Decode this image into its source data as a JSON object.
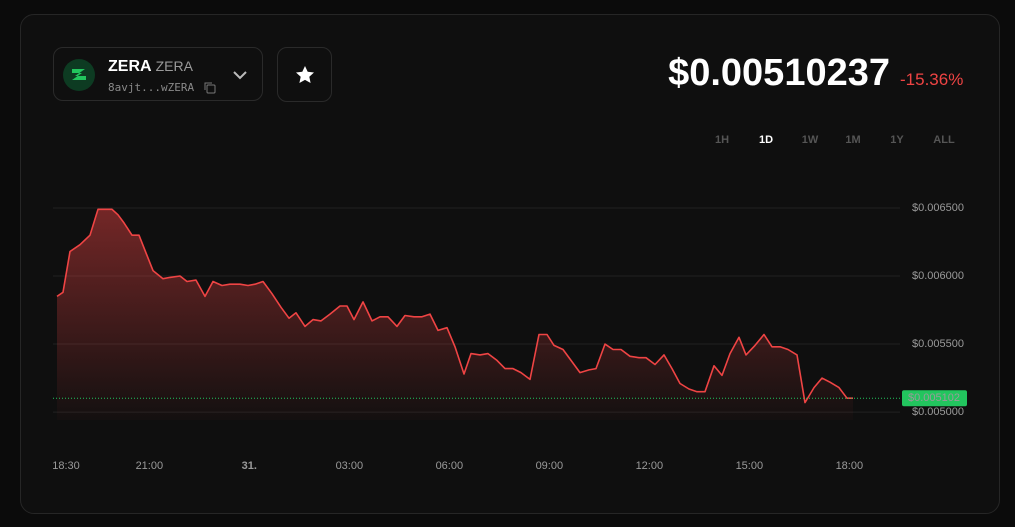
{
  "header": {
    "token_name": "ZERA",
    "token_symbol": "ZERA",
    "address": "8avjt...wZERA",
    "price": "$0.00510237",
    "change": "-15.36%"
  },
  "timeframes": [
    "1H",
    "1D",
    "1W",
    "1M",
    "1Y",
    "ALL"
  ],
  "active_timeframe": 1,
  "chart_data": {
    "type": "area",
    "color": "#ef4444",
    "grid": true,
    "x": [
      18.23,
      18.41,
      18.62,
      18.92,
      19.22,
      19.46,
      19.88,
      20.06,
      20.24,
      20.48,
      20.69,
      20.9,
      21.11,
      21.41,
      21.62,
      21.92,
      22.13,
      22.4,
      22.67,
      22.91,
      23.18,
      23.42,
      23.72,
      23.96,
      24.17,
      24.41,
      24.68,
      24.95,
      25.19,
      25.4,
      25.67,
      25.91,
      26.15,
      26.42,
      26.72,
      26.93,
      27.14,
      27.41,
      27.68,
      27.92,
      28.16,
      28.43,
      28.67,
      28.94,
      29.18,
      29.42,
      29.66,
      29.93,
      30.17,
      30.44,
      30.65,
      30.92,
      31.16,
      31.43,
      31.67,
      31.91,
      32.15,
      32.42,
      32.69,
      32.93,
      33.14,
      33.41,
      33.65,
      33.92,
      34.19,
      34.4,
      34.67,
      34.91,
      35.15,
      35.42,
      35.69,
      35.9,
      36.17,
      36.44,
      36.68,
      36.92,
      37.19,
      37.43,
      37.67,
      37.94,
      38.18,
      38.42,
      38.69,
      38.9,
      39.17,
      39.44,
      39.68,
      39.92,
      40.16,
      40.43,
      40.67,
      40.94,
      41.18,
      41.42,
      41.69,
      41.93,
      42.11
    ],
    "values": [
      0.00585,
      0.00588,
      0.00618,
      0.00623,
      0.0063,
      0.00649,
      0.00649,
      0.00645,
      0.00639,
      0.0063,
      0.0063,
      0.00617,
      0.00604,
      0.00598,
      0.00599,
      0.006,
      0.00596,
      0.00597,
      0.00585,
      0.00596,
      0.00593,
      0.00594,
      0.00594,
      0.00593,
      0.00594,
      0.00596,
      0.00587,
      0.00577,
      0.00569,
      0.00573,
      0.00563,
      0.00568,
      0.00567,
      0.00572,
      0.00578,
      0.00578,
      0.00568,
      0.00581,
      0.00567,
      0.0057,
      0.0057,
      0.00563,
      0.00571,
      0.0057,
      0.0057,
      0.00572,
      0.0056,
      0.00562,
      0.00548,
      0.00528,
      0.00543,
      0.00542,
      0.00543,
      0.00538,
      0.00532,
      0.00532,
      0.00529,
      0.00524,
      0.00557,
      0.00557,
      0.00549,
      0.00546,
      0.00538,
      0.00529,
      0.00531,
      0.00532,
      0.0055,
      0.00546,
      0.00546,
      0.00541,
      0.0054,
      0.0054,
      0.00535,
      0.00542,
      0.00532,
      0.00521,
      0.00517,
      0.00515,
      0.00515,
      0.00534,
      0.00527,
      0.00543,
      0.00555,
      0.00542,
      0.00549,
      0.00557,
      0.00548,
      0.00548,
      0.00546,
      0.00542,
      0.00507,
      0.00518,
      0.00525,
      0.00522,
      0.00518,
      0.005102,
      0.005102
    ],
    "xlim": [
      18.11,
      43.46
    ],
    "xticks": [
      {
        "value": 18.5,
        "label": "18:30"
      },
      {
        "value": 21,
        "label": "21:00"
      },
      {
        "value": 24,
        "label": "31."
      },
      {
        "value": 27,
        "label": "03:00"
      },
      {
        "value": 30,
        "label": "06:00"
      },
      {
        "value": 33,
        "label": "09:00"
      },
      {
        "value": 36,
        "label": "12:00"
      },
      {
        "value": 39,
        "label": "15:00"
      },
      {
        "value": 42,
        "label": "18:00"
      }
    ],
    "ylim": [
      0.004942,
      0.006632
    ],
    "yticks": [
      {
        "value": 0.005,
        "label": "$0.005000"
      },
      {
        "value": 0.0055,
        "label": "$0.005500"
      },
      {
        "value": 0.006,
        "label": "$0.006000"
      },
      {
        "value": 0.0065,
        "label": "$0.006500"
      }
    ],
    "reference_line": {
      "value": 0.005102,
      "label": "$0.005102",
      "color": "#22c55e"
    }
  }
}
